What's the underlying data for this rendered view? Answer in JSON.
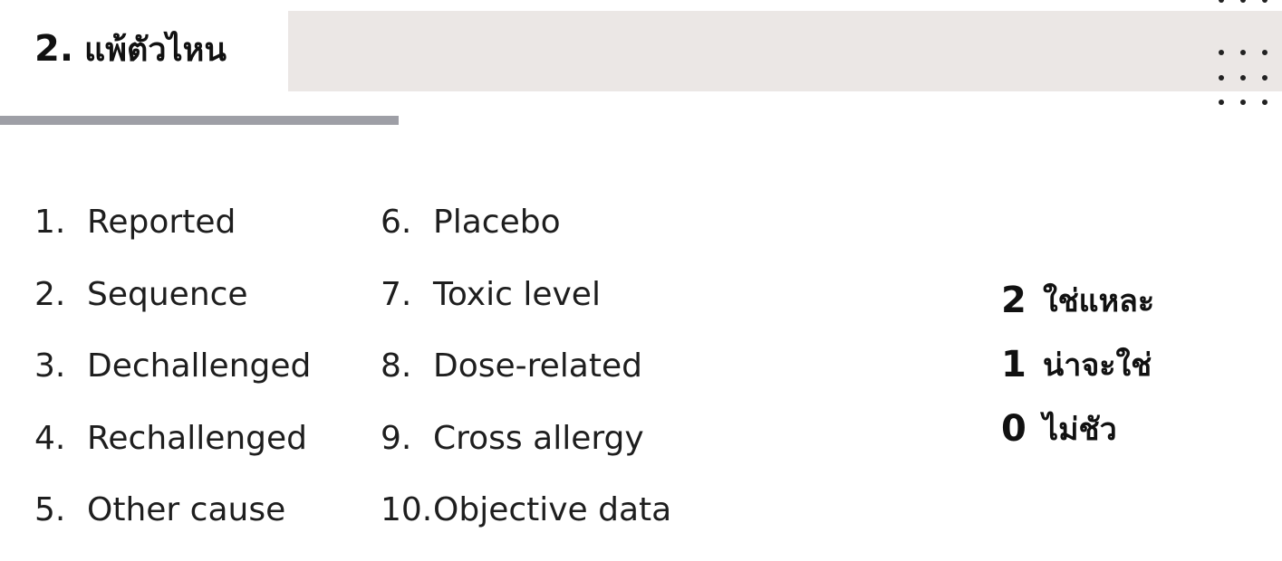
{
  "header": {
    "number": "2.",
    "title": "แพ้ตัวไหน"
  },
  "criteria_left": [
    {
      "num": "1.",
      "label": "Reported"
    },
    {
      "num": "2.",
      "label": "Sequence"
    },
    {
      "num": "3.",
      "label": "Dechallenged"
    },
    {
      "num": "4.",
      "label": "Rechallenged"
    },
    {
      "num": "5.",
      "label": "Other cause"
    }
  ],
  "criteria_right": [
    {
      "num": "6.",
      "label": "Placebo"
    },
    {
      "num": "7.",
      "label": "Toxic level"
    },
    {
      "num": "8.",
      "label": "Dose-related"
    },
    {
      "num": "9.",
      "label": "Cross allergy"
    },
    {
      "num": "10.",
      "label": "Objective data"
    }
  ],
  "scores": [
    {
      "value": "2",
      "label": "ใช่แหละ"
    },
    {
      "value": "1",
      "label": "น่าจะใช่"
    },
    {
      "value": "0",
      "label": "ไม่ชัว"
    }
  ],
  "colors": {
    "title_band": "#ebe7e5",
    "underline_bar": "#9e9fa6",
    "dots": "#222222"
  }
}
